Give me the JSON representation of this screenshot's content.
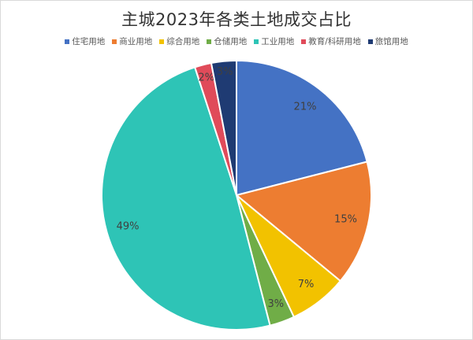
{
  "chart_data": {
    "type": "pie",
    "title": "主城2023年各类土地成交占比",
    "legend_position": "top",
    "slices": [
      {
        "name": "住宅用地",
        "value": 21,
        "label": "21%",
        "color": "#4472C4"
      },
      {
        "name": "商业用地",
        "value": 15,
        "label": "15%",
        "color": "#ED7D31"
      },
      {
        "name": "综合用地",
        "value": 7,
        "label": "7%",
        "color": "#F2C200"
      },
      {
        "name": "仓储用地",
        "value": 3,
        "label": "3%",
        "color": "#70AD47"
      },
      {
        "name": "工业用地",
        "value": 49,
        "label": "49%",
        "color": "#2EC4B6"
      },
      {
        "name": "教育/科研用地",
        "value": 2,
        "label": "2%",
        "color": "#E04B5A"
      },
      {
        "name": "旅馆用地",
        "value": 3,
        "label": "3%",
        "color": "#1F3B73"
      }
    ]
  }
}
